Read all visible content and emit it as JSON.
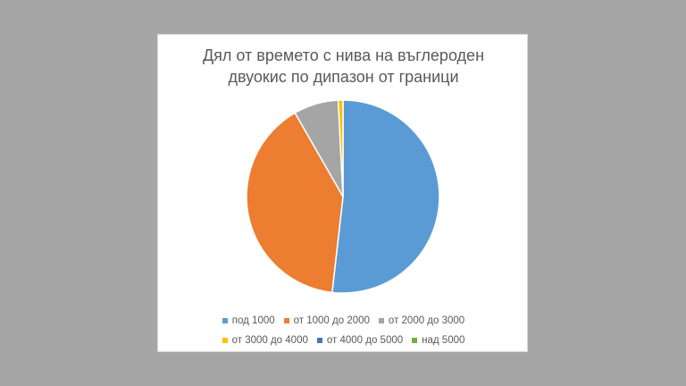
{
  "chart_data": {
    "type": "pie",
    "title_lines": [
      "Дял от времето с нива на въглероден",
      "двуокис по дипазон от граници"
    ],
    "categories": [
      "под 1000",
      "от 1000 до 2000",
      "от 2000 до 3000",
      "от 3000 до 4000",
      "от 4000 до 5000",
      "над 5000"
    ],
    "values": [
      51.8,
      39.9,
      7.5,
      0.8,
      0.0,
      0.0
    ],
    "colors": [
      "#5b9bd5",
      "#ed7d31",
      "#a5a5a5",
      "#ffc000",
      "#4472c4",
      "#70ad47"
    ],
    "legend_position": "bottom"
  }
}
